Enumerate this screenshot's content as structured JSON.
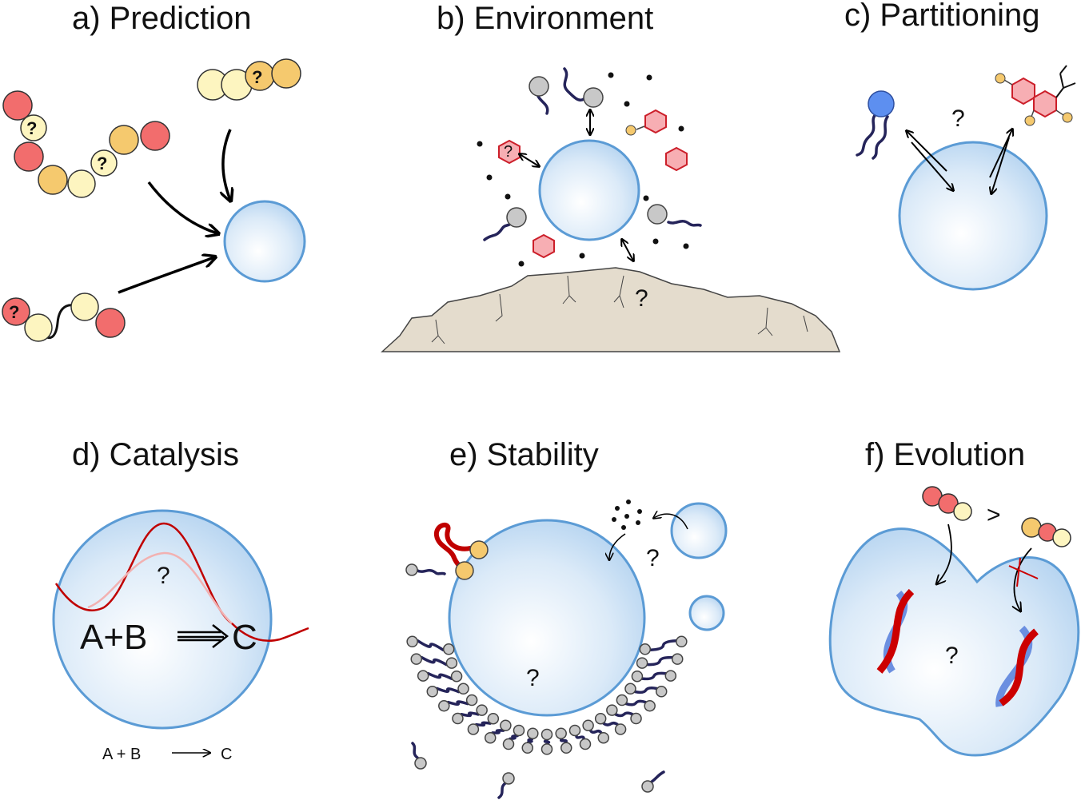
{
  "panels": {
    "a": {
      "title": "a) Prediction",
      "q": "?"
    },
    "b": {
      "title": "b) Environment",
      "q": "?"
    },
    "c": {
      "title": "c) Partitioning",
      "q": "?"
    },
    "d": {
      "title": "d) Catalysis",
      "q": "?",
      "reaction_big": "A+B",
      "product_big": "C",
      "reaction_small": "A + B",
      "product_small": "C"
    },
    "e": {
      "title": "e) Stability",
      "q": "?"
    },
    "f": {
      "title": "f) Evolution",
      "q": "?",
      "greater": ">"
    }
  },
  "colors": {
    "vesicle_fill": "#cfe5f7",
    "vesicle_stroke": "#5b9bd5",
    "red_bead": "#f26d6d",
    "orange_bead": "#f5c96e",
    "yellow_bead": "#fdf5c0",
    "lipid_tail": "#25245a",
    "rock": "#e4dccd",
    "hexagon": "#f7aeb3",
    "dna_red": "#cc0000",
    "dna_blue": "#6b8fe0"
  }
}
